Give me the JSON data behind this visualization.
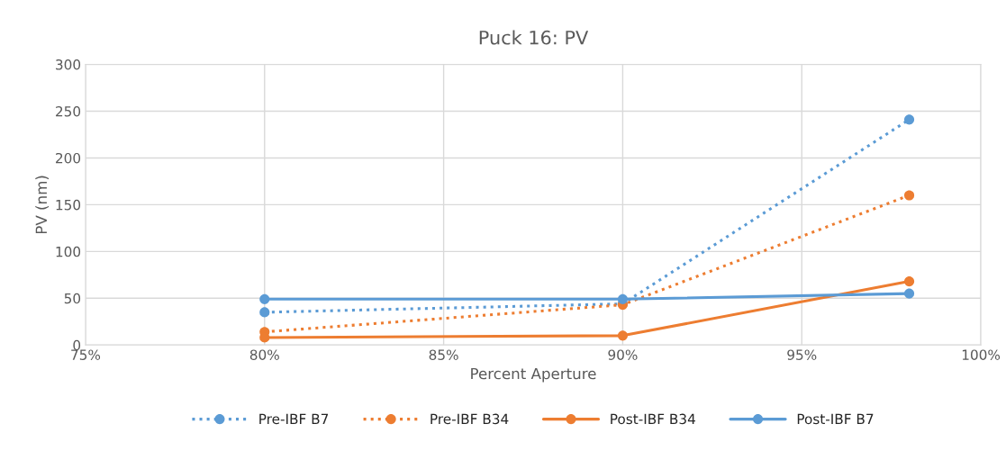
{
  "chart_data": {
    "type": "line",
    "title": "Puck 16: PV",
    "xlabel": "Percent Aperture",
    "ylabel": "PV (nm)",
    "x": [
      80,
      90,
      98
    ],
    "series": [
      {
        "name": "Pre-IBF B7",
        "color": "#5b9bd5",
        "values": [
          35,
          44,
          241
        ],
        "line_style": "dotted"
      },
      {
        "name": "Pre-IBF B34",
        "color": "#ed7d31",
        "values": [
          14,
          43,
          160
        ],
        "line_style": "dotted"
      },
      {
        "name": "Post-IBF B34",
        "color": "#ed7d31",
        "values": [
          8,
          10,
          68
        ],
        "line_style": "solid"
      },
      {
        "name": "Post-IBF B7",
        "color": "#5b9bd5",
        "values": [
          49,
          49,
          55
        ],
        "line_style": "solid"
      }
    ],
    "xlim": [
      75,
      100
    ],
    "xticks": [
      {
        "value": 75,
        "label": "75%"
      },
      {
        "value": 80,
        "label": "80%"
      },
      {
        "value": 85,
        "label": "85%"
      },
      {
        "value": 90,
        "label": "90%"
      },
      {
        "value": 95,
        "label": "95%"
      },
      {
        "value": 100,
        "label": "100%"
      }
    ],
    "ylim": [
      0,
      300
    ],
    "yticks": [
      0,
      50,
      100,
      150,
      200,
      250,
      300
    ],
    "grid": true,
    "legend": "bottom",
    "marker": "circle"
  }
}
